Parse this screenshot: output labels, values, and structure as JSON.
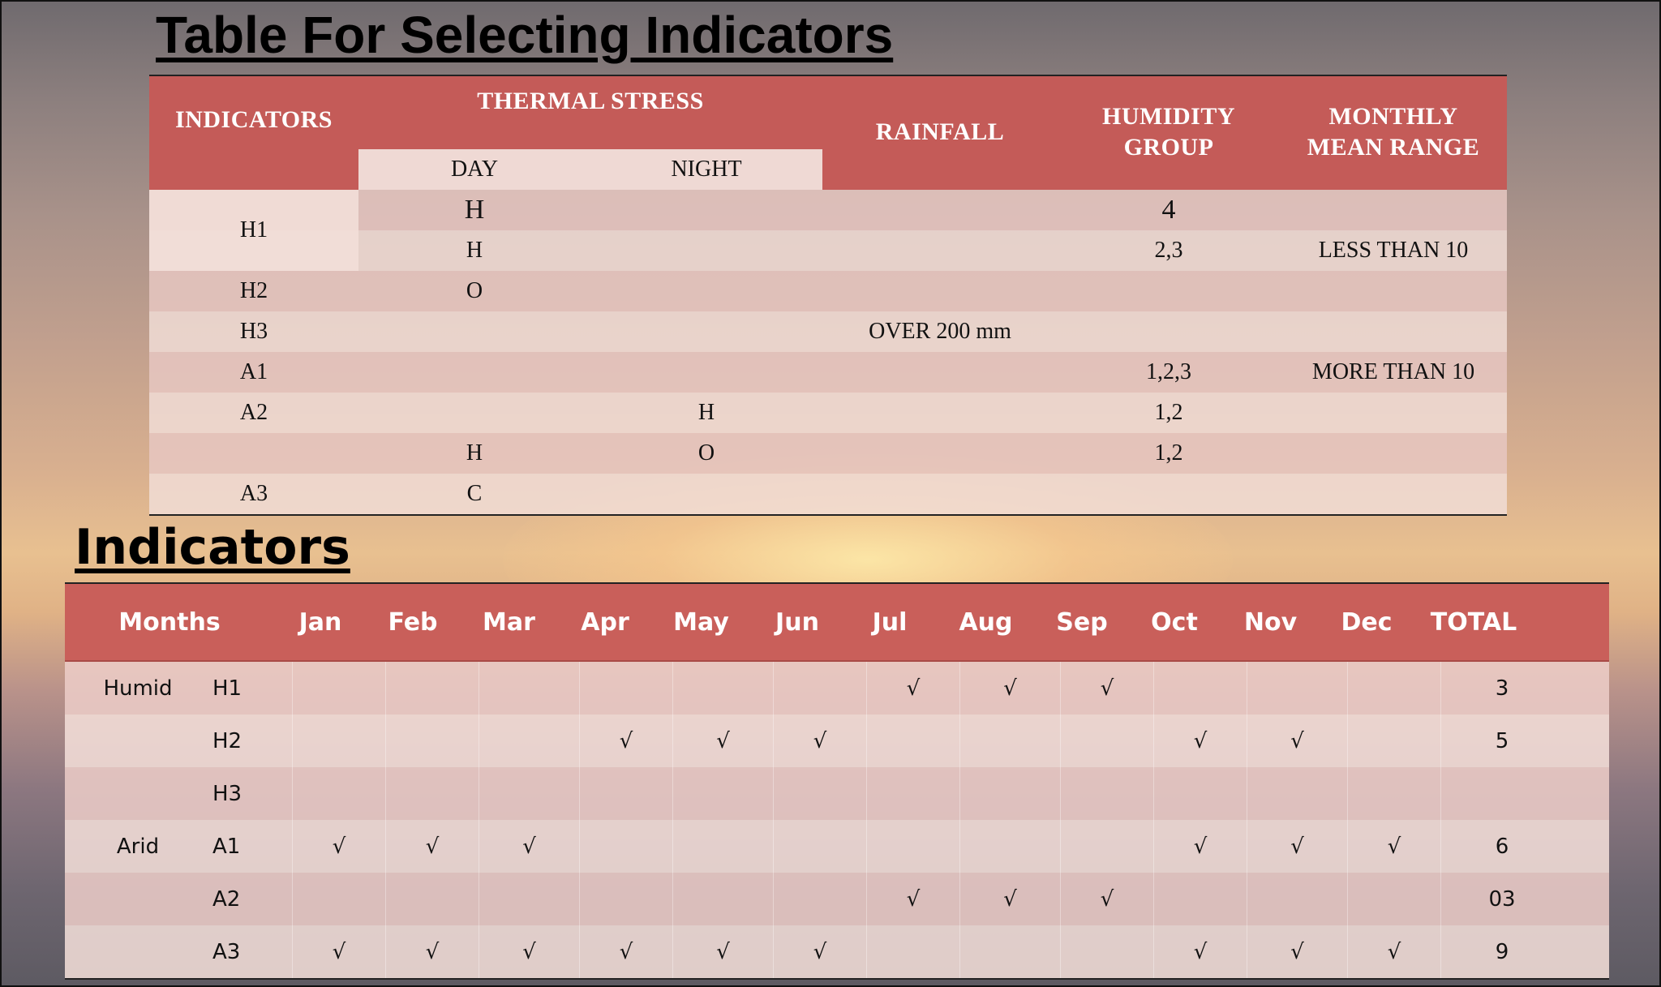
{
  "title_main": "Table For Selecting Indicators",
  "title_indicators": "Indicators",
  "table1": {
    "headers": {
      "indicators": "INDICATORS",
      "thermal_stress": "THERMAL STRESS",
      "day": "DAY",
      "night": "NIGHT",
      "rainfall": "RAINFALL",
      "humidity_group_1": "HUMIDITY",
      "humidity_group_2": "GROUP",
      "monthly_mean_range_1": "MONTHLY",
      "monthly_mean_range_2": "MEAN RANGE"
    },
    "h1_label": "H1",
    "rows": [
      {
        "indicator": "",
        "day": "H",
        "night": "",
        "rainfall": "",
        "humidity": "4",
        "range": ""
      },
      {
        "indicator": "",
        "day": "H",
        "night": "",
        "rainfall": "",
        "humidity": "2,3",
        "range": "LESS THAN 10"
      },
      {
        "indicator": "H2",
        "day": "O",
        "night": "",
        "rainfall": "",
        "humidity": "",
        "range": ""
      },
      {
        "indicator": "H3",
        "day": "",
        "night": "",
        "rainfall": "OVER 200 mm",
        "humidity": "",
        "range": ""
      },
      {
        "indicator": "A1",
        "day": "",
        "night": "",
        "rainfall": "",
        "humidity": "1,2,3",
        "range": "MORE THAN 10"
      },
      {
        "indicator": "A2",
        "day": "",
        "night": "H",
        "rainfall": "",
        "humidity": "1,2",
        "range": ""
      },
      {
        "indicator": "",
        "day": "H",
        "night": "O",
        "rainfall": "",
        "humidity": "1,2",
        "range": ""
      },
      {
        "indicator": "A3",
        "day": "C",
        "night": "",
        "rainfall": "",
        "humidity": "",
        "range": ""
      }
    ]
  },
  "table2": {
    "headers": [
      "Months",
      "Jan",
      "Feb",
      "Mar",
      "Apr",
      "May",
      "Jun",
      "Jul",
      "Aug",
      "Sep",
      "Oct",
      "Nov",
      "Dec",
      "TOTAL"
    ],
    "rows": [
      {
        "group": "Humid",
        "code": "H1",
        "cells": [
          "",
          "",
          "",
          "",
          "",
          "",
          "√",
          "√",
          "√",
          "",
          "",
          ""
        ],
        "total": "3"
      },
      {
        "group": "",
        "code": "H2",
        "cells": [
          "",
          "",
          "",
          "√",
          "√",
          "√",
          "",
          "",
          "",
          "√",
          "√",
          ""
        ],
        "total": "5"
      },
      {
        "group": "",
        "code": "H3",
        "cells": [
          "",
          "",
          "",
          "",
          "",
          "",
          "",
          "",
          "",
          "",
          "",
          ""
        ],
        "total": ""
      },
      {
        "group": "Arid",
        "code": "A1",
        "cells": [
          "√",
          "√",
          "√",
          "",
          "",
          "",
          "",
          "",
          "",
          "√",
          "√",
          "√"
        ],
        "total": "6"
      },
      {
        "group": "",
        "code": "A2",
        "cells": [
          "",
          "",
          "",
          "",
          "",
          "",
          "√",
          "√",
          "√",
          "",
          "",
          ""
        ],
        "total": "03"
      },
      {
        "group": "",
        "code": "A3",
        "cells": [
          "√",
          "√",
          "√",
          "√",
          "√",
          "√",
          "",
          "",
          "",
          "√",
          "√",
          "√"
        ],
        "total": "9"
      }
    ]
  }
}
